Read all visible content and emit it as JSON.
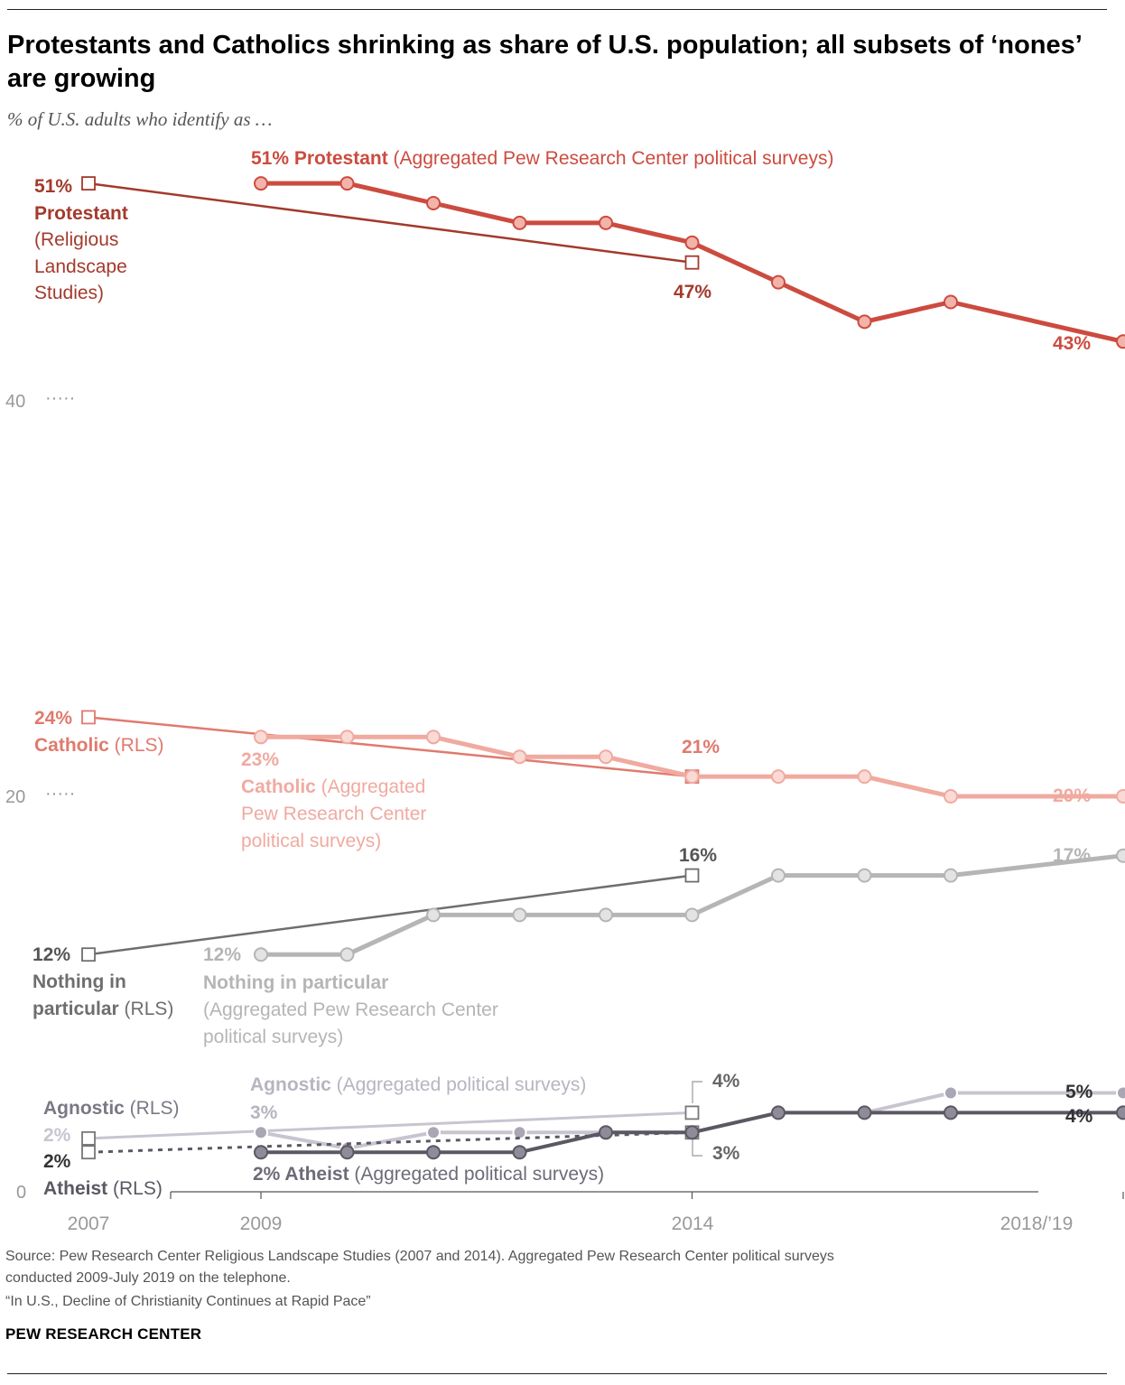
{
  "title": "Protestants and Catholics shrinking as share of U.S. population; all subsets of ‘nones’ are growing",
  "subtitle": "% of U.S. adults who identify as …",
  "source": {
    "line1": "Source: Pew Research Center Religious Landscape Studies (2007 and 2014). Aggregated Pew Research Center political surveys",
    "line2": "conducted 2009-July 2019 on the telephone.",
    "line3": "“In U.S., Decline of Christianity Continues at Rapid Pace”"
  },
  "organization": "PEW RESEARCH CENTER",
  "colors": {
    "protestant_rls": "#a33a2c",
    "protestant_agg": "#cc4b3f",
    "catholic_rls": "#e07a6e",
    "catholic_agg": "#f0aaa0",
    "nothing_rls": "#6e6e6e",
    "nothing_agg": "#b5b5b5",
    "agnostic": "#c8c4d0",
    "atheist": "#5b5863",
    "axis_text": "#999999"
  },
  "chart_data": {
    "type": "line",
    "title": "Protestants and Catholics shrinking as share of U.S. population; all subsets of ‘nones’ are growing",
    "ylabel": "% of U.S. adults who identify as …",
    "xlabel": "",
    "ylim": [
      0,
      55
    ],
    "xlim": [
      2007,
      2019
    ],
    "x_tick_labels": [
      {
        "x": 2007,
        "label": "2007"
      },
      {
        "x": 2009,
        "label": "2009"
      },
      {
        "x": 2014,
        "label": "2014"
      },
      {
        "x": 2019,
        "label": "2018/’19"
      }
    ],
    "y_ticks": [
      0,
      20,
      40
    ],
    "grid": false,
    "series": [
      {
        "id": "protestant_rls",
        "name": "Protestant (Religious Landscape Studies)",
        "marker": "square",
        "x": [
          2007,
          2014
        ],
        "values": [
          51,
          47
        ]
      },
      {
        "id": "protestant_agg",
        "name": "Protestant (Aggregated Pew Research Center political surveys)",
        "marker": "circle",
        "x": [
          2009,
          2010,
          2011,
          2012,
          2013,
          2014,
          2015,
          2016,
          2017,
          2019
        ],
        "values": [
          51,
          51,
          50,
          49,
          49,
          48,
          46,
          44,
          45,
          43
        ]
      },
      {
        "id": "catholic_rls",
        "name": "Catholic (RLS)",
        "marker": "square",
        "x": [
          2007,
          2014
        ],
        "values": [
          24,
          21
        ]
      },
      {
        "id": "catholic_agg",
        "name": "Catholic (Aggregated Pew Research Center political surveys)",
        "marker": "circle",
        "x": [
          2009,
          2010,
          2011,
          2012,
          2013,
          2014,
          2015,
          2016,
          2017,
          2019
        ],
        "values": [
          23,
          23,
          23,
          22,
          22,
          21,
          21,
          21,
          20,
          20
        ]
      },
      {
        "id": "nothing_rls",
        "name": "Nothing in particular (RLS)",
        "marker": "square",
        "x": [
          2007,
          2014
        ],
        "values": [
          12,
          16
        ]
      },
      {
        "id": "nothing_agg",
        "name": "Nothing in particular (Aggregated Pew Research Center political surveys)",
        "marker": "circle",
        "x": [
          2009,
          2010,
          2011,
          2012,
          2013,
          2014,
          2015,
          2016,
          2017,
          2019
        ],
        "values": [
          12,
          12,
          14,
          14,
          14,
          14,
          16,
          16,
          16,
          17
        ]
      },
      {
        "id": "agnostic_rls",
        "name": "Agnostic (RLS)",
        "marker": "square",
        "x": [
          2007,
          2014
        ],
        "values": [
          2.7,
          4
        ]
      },
      {
        "id": "agnostic_agg",
        "name": "Agnostic (Aggregated political surveys)",
        "marker": "circle",
        "x": [
          2009,
          2010,
          2011,
          2012,
          2013,
          2014,
          2015,
          2016,
          2017,
          2019
        ],
        "values": [
          3,
          2.2,
          3,
          3,
          3,
          3,
          4,
          4,
          5,
          5
        ]
      },
      {
        "id": "atheist_rls",
        "name": "Atheist (RLS)",
        "marker": "square",
        "x": [
          2007,
          2014
        ],
        "values": [
          2,
          3
        ]
      },
      {
        "id": "atheist_agg",
        "name": "Atheist (Aggregated political surveys)",
        "marker": "circle",
        "x": [
          2009,
          2010,
          2011,
          2012,
          2013,
          2014,
          2015,
          2016,
          2017,
          2019
        ],
        "values": [
          2,
          2,
          2,
          2,
          3,
          3,
          4,
          4,
          4,
          4
        ]
      }
    ],
    "annotations": {
      "prot_rls_pct": "51%",
      "prot_rls_name": "Protestant",
      "prot_rls_l1": "(Religious",
      "prot_rls_l2": "Landscape",
      "prot_rls_l3": "Studies)",
      "prot_rls_end": "47%",
      "prot_agg_pct": "51% Protestant",
      "prot_agg_src": " (Aggregated Pew Research Center political surveys)",
      "prot_agg_end": "43%",
      "cath_rls_pct": "24%",
      "cath_rls_name": "Catholic",
      "cath_rls_src": " (RLS)",
      "cath_rls_end": "21%",
      "cath_agg_pct": "23%",
      "cath_agg_name": "Catholic",
      "cath_agg_src": " (Aggregated",
      "cath_agg_l2": "Pew Research Center",
      "cath_agg_l3": "political surveys)",
      "cath_agg_end": "20%",
      "nip_rls_pct": "12%",
      "nip_rls_l1": "Nothing in",
      "nip_rls_l2": "particular",
      "nip_rls_src": " (RLS)",
      "nip_rls_end": "16%",
      "nip_agg_pct": "12%",
      "nip_agg_name": "Nothing in particular",
      "nip_agg_l2": "(Aggregated Pew Research Center",
      "nip_agg_l3": "political surveys)",
      "nip_agg_end": "17%",
      "agn_agg_name": "Agnostic",
      "agn_agg_src": " (Aggregated political surveys)",
      "agn_agg_pct": "3%",
      "agn_rls_name": "Agnostic",
      "agn_rls_src": " (RLS)",
      "agn_rls_pct": "2%",
      "agn_rls_end": "4%",
      "agn_agg_end": "5%",
      "ath_rls_pct": "2%",
      "ath_rls_name": "Atheist",
      "ath_rls_src": " (RLS)",
      "ath_agg_pct": "2% Atheist",
      "ath_agg_src": " (Aggregated political surveys)",
      "ath_rls_end": "3%",
      "ath_agg_end": "4%"
    }
  }
}
